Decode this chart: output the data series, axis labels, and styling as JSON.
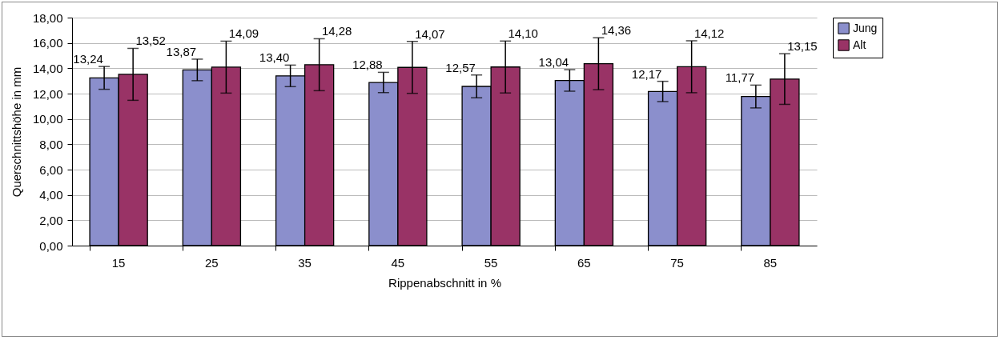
{
  "chart_data": {
    "type": "bar",
    "xlabel": "Rippenabschnitt in %",
    "ylabel": "Querschnittshöhe in mm",
    "categories": [
      "15",
      "25",
      "35",
      "45",
      "55",
      "65",
      "75",
      "85"
    ],
    "series": [
      {
        "name": "Jung",
        "color": "#8b8fcc",
        "values": [
          13.24,
          13.87,
          13.4,
          12.88,
          12.57,
          13.04,
          12.17,
          11.77
        ],
        "errors": [
          0.9,
          0.85,
          0.85,
          0.8,
          0.9,
          0.85,
          0.8,
          0.9
        ],
        "value_labels": [
          "13,24",
          "13,87",
          "13,40",
          "12,88",
          "12,57",
          "13,04",
          "12,17",
          "11,77"
        ]
      },
      {
        "name": "Alt",
        "color": "#993366",
        "values": [
          13.52,
          14.09,
          14.28,
          14.07,
          14.1,
          14.36,
          14.12,
          13.15
        ],
        "errors": [
          2.05,
          2.05,
          2.05,
          2.05,
          2.05,
          2.05,
          2.05,
          2.0
        ],
        "value_labels": [
          "13,52",
          "14,09",
          "14,28",
          "14,07",
          "14,10",
          "14,36",
          "14,12",
          "13,15"
        ]
      }
    ],
    "ylim": [
      0,
      18
    ],
    "yticks": [
      {
        "value": 0,
        "label": "0,00"
      },
      {
        "value": 2,
        "label": "2,00"
      },
      {
        "value": 4,
        "label": "4,00"
      },
      {
        "value": 6,
        "label": "6,00"
      },
      {
        "value": 8,
        "label": "8,00"
      },
      {
        "value": 10,
        "label": "10,00"
      },
      {
        "value": 12,
        "label": "12,00"
      },
      {
        "value": 14,
        "label": "14,00"
      },
      {
        "value": 16,
        "label": "16,00"
      },
      {
        "value": 18,
        "label": "18,00"
      }
    ],
    "grid": "y",
    "legend": "right"
  }
}
